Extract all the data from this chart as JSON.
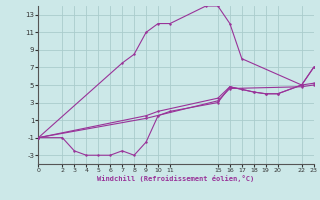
{
  "xlabel": "Windchill (Refroidissement éolien,°C)",
  "bg_color": "#cce8e8",
  "grid_color": "#aacccc",
  "line_color": "#993399",
  "xlim": [
    0,
    23
  ],
  "ylim": [
    -4,
    14
  ],
  "xticks": [
    0,
    2,
    3,
    4,
    5,
    6,
    7,
    8,
    9,
    10,
    11,
    15,
    16,
    17,
    18,
    19,
    20,
    22,
    23
  ],
  "yticks": [
    -3,
    -1,
    1,
    3,
    5,
    7,
    9,
    11,
    13
  ],
  "curve_upper_x": [
    0,
    7,
    8,
    9,
    10,
    11,
    14,
    15,
    16,
    17,
    22,
    23
  ],
  "curve_upper_y": [
    -1,
    7.5,
    8.5,
    11,
    12,
    12,
    14,
    14,
    12,
    8,
    5,
    7
  ],
  "curve_lower_x": [
    0,
    2,
    3,
    4,
    5,
    6,
    7,
    8,
    9,
    10,
    11,
    15,
    16,
    17,
    18,
    19,
    20,
    22,
    23
  ],
  "curve_lower_y": [
    -1,
    -1,
    -2.5,
    -3,
    -3,
    -3,
    -2.5,
    -3,
    -1.5,
    1.5,
    2.0,
    3.0,
    4.8,
    4.5,
    4.2,
    4.0,
    4.0,
    5.0,
    7
  ],
  "curve_mid1_x": [
    0,
    9,
    10,
    15,
    16,
    17,
    18,
    19,
    20,
    22,
    23
  ],
  "curve_mid1_y": [
    -1,
    1.5,
    2.0,
    3.5,
    4.8,
    4.5,
    4.2,
    4.0,
    4.0,
    5.0,
    5.2
  ],
  "curve_mid2_x": [
    0,
    9,
    15,
    16,
    22,
    23
  ],
  "curve_mid2_y": [
    -1,
    1.2,
    3.2,
    4.6,
    4.8,
    5.0
  ]
}
